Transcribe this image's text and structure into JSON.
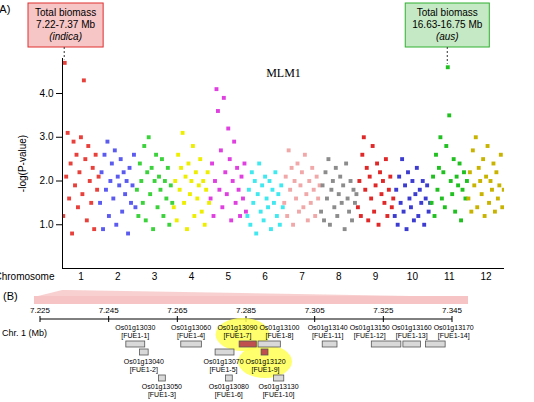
{
  "chart_data": {
    "type": "manhattan",
    "panel_label": "(A)",
    "title": "MLM1",
    "xlabel": "Chromosome",
    "ylabel": "-log(P-value)",
    "xlim": [
      0.5,
      12.5
    ],
    "xticks": [
      1,
      2,
      3,
      4,
      5,
      6,
      7,
      8,
      9,
      10,
      11,
      12
    ],
    "ylim": [
      0,
      4.8
    ],
    "yticks": [
      {
        "value": 1,
        "label": "1.0"
      },
      {
        "value": 2,
        "label": "2.0"
      },
      {
        "value": 3,
        "label": "3.0"
      },
      {
        "value": 4,
        "label": "4.0"
      }
    ],
    "marker": "square",
    "series": [
      {
        "color": "#e8413c",
        "x": [
          0.52,
          0.56,
          0.6,
          0.64,
          0.68,
          0.72,
          0.76,
          0.8,
          0.84,
          0.88,
          0.92,
          0.96,
          1,
          1.04,
          1.08,
          1.12,
          1.16,
          1.2,
          1.24,
          1.28,
          1.32,
          1.36,
          1.4,
          1.44,
          1.48
        ],
        "values": [
          1.2,
          4.7,
          2.1,
          3.1,
          1.6,
          2.4,
          0.8,
          2.9,
          1.9,
          2.6,
          1.4,
          2.2,
          3.0,
          1.7,
          4.3,
          2.5,
          1.1,
          2.8,
          2.0,
          1.5,
          2.3,
          0.9,
          2.6,
          1.8,
          2.1
        ]
      },
      {
        "color": "#5b5bf0",
        "x": [
          1.52,
          1.56,
          1.6,
          1.64,
          1.68,
          1.72,
          1.76,
          1.8,
          1.84,
          1.88,
          1.92,
          1.96,
          2,
          2.04,
          2.08,
          2.12,
          2.16,
          2.2,
          2.24,
          2.28,
          2.32,
          2.36,
          2.4,
          2.44,
          2.48
        ],
        "values": [
          1.5,
          2.2,
          0.9,
          2.6,
          1.8,
          2.9,
          1.2,
          2.0,
          2.4,
          1.6,
          2.7,
          1.0,
          2.1,
          1.9,
          2.5,
          1.3,
          2.2,
          1.7,
          2.0,
          0.8,
          2.3,
          1.5,
          1.9,
          2.6,
          1.4
        ]
      },
      {
        "color": "#3cd23c",
        "x": [
          2.52,
          2.56,
          2.6,
          2.64,
          2.68,
          2.72,
          2.76,
          2.8,
          2.84,
          2.88,
          2.92,
          2.96,
          3,
          3.04,
          3.08,
          3.12,
          3.16,
          3.2,
          3.24,
          3.28,
          3.32,
          3.36,
          3.4,
          3.44,
          3.48
        ],
        "values": [
          1.8,
          1.2,
          2.4,
          2.0,
          1.5,
          2.8,
          1.1,
          2.2,
          3.0,
          1.7,
          2.3,
          0.9,
          2.0,
          2.6,
          1.4,
          2.1,
          1.8,
          2.5,
          1.2,
          2.0,
          1.6,
          2.3,
          1.0,
          1.9,
          1.5
        ]
      },
      {
        "color": "#eeee00",
        "x": [
          3.52,
          3.56,
          3.6,
          3.64,
          3.68,
          3.72,
          3.76,
          3.8,
          3.84,
          3.88,
          3.92,
          3.96,
          4,
          4.04,
          4.08,
          4.12,
          4.16,
          4.2,
          4.24,
          4.28,
          4.32,
          4.36,
          4.4,
          4.44,
          4.48
        ],
        "values": [
          1.4,
          2.0,
          1.1,
          2.6,
          1.8,
          2.3,
          3.1,
          1.5,
          2.1,
          0.9,
          2.4,
          1.7,
          2.0,
          2.8,
          1.2,
          2.2,
          1.6,
          1.9,
          2.5,
          1.3,
          2.0,
          1.0,
          1.8,
          2.2,
          1.5
        ]
      },
      {
        "color": "#e040e0",
        "x": [
          4.52,
          4.56,
          4.6,
          4.64,
          4.68,
          4.72,
          4.76,
          4.8,
          4.84,
          4.88,
          4.92,
          4.96,
          5,
          5.04,
          5.08,
          5.12,
          5.16,
          5.2,
          5.24,
          5.28,
          5.32,
          5.36,
          5.4,
          5.44,
          5.48
        ],
        "values": [
          1.6,
          2.4,
          1.2,
          2.0,
          4.1,
          3.6,
          1.8,
          2.7,
          1.4,
          3.9,
          2.2,
          1.7,
          3.2,
          2.5,
          1.1,
          2.0,
          2.9,
          1.5,
          2.3,
          1.8,
          1.2,
          2.1,
          1.6,
          2.4,
          1.3
        ]
      },
      {
        "color": "#40e8f0",
        "x": [
          5.52,
          5.56,
          5.6,
          5.64,
          5.68,
          5.72,
          5.76,
          5.8,
          5.84,
          5.88,
          5.92,
          5.96,
          6,
          6.04,
          6.08,
          6.12,
          6.16,
          6.2,
          6.24,
          6.28,
          6.32,
          6.36,
          6.4,
          6.44,
          6.48
        ],
        "values": [
          1.2,
          1.8,
          1.0,
          2.2,
          1.5,
          2.0,
          0.8,
          1.7,
          2.4,
          1.3,
          1.9,
          1.1,
          2.1,
          1.6,
          1.4,
          2.0,
          0.9,
          1.8,
          1.5,
          2.2,
          1.2,
          1.7,
          1.0,
          1.9,
          1.4
        ]
      },
      {
        "color": "#f0a8a8",
        "x": [
          6.52,
          6.56,
          6.6,
          6.64,
          6.68,
          6.72,
          6.76,
          6.8,
          6.84,
          6.88,
          6.92,
          6.96,
          7,
          7.04,
          7.08,
          7.12,
          7.16,
          7.2,
          7.24,
          7.28,
          7.32,
          7.36,
          7.4,
          7.44,
          7.48
        ],
        "values": [
          1.5,
          2.1,
          1.2,
          2.7,
          1.8,
          2.3,
          1.0,
          2.0,
          1.6,
          2.4,
          1.3,
          1.9,
          2.2,
          1.4,
          2.6,
          1.7,
          1.1,
          2.0,
          1.5,
          2.3,
          1.8,
          1.2,
          2.1,
          1.6,
          1.9
        ]
      },
      {
        "color": "#8c8c8c",
        "x": [
          7.52,
          7.56,
          7.6,
          7.64,
          7.68,
          7.72,
          7.76,
          7.8,
          7.84,
          7.88,
          7.92,
          7.96,
          8,
          8.04,
          8.08,
          8.12,
          8.16,
          8.2,
          8.24,
          8.28,
          8.32,
          8.36,
          8.4,
          8.44,
          8.48
        ],
        "values": [
          1.3,
          1.9,
          1.1,
          2.2,
          1.6,
          2.5,
          1.0,
          1.8,
          2.0,
          1.4,
          2.3,
          1.2,
          1.7,
          2.1,
          1.5,
          1.9,
          0.9,
          2.4,
          1.6,
          1.3,
          2.0,
          1.1,
          1.8,
          1.5,
          1.7
        ]
      },
      {
        "color": "#e02828",
        "x": [
          8.52,
          8.56,
          8.6,
          8.64,
          8.68,
          8.72,
          8.76,
          8.8,
          8.84,
          8.88,
          8.92,
          8.96,
          9,
          9.04,
          9.08,
          9.12,
          9.16,
          9.2,
          9.24,
          9.28,
          9.32,
          9.36,
          9.4,
          9.44,
          9.48
        ],
        "values": [
          1.4,
          2.0,
          1.2,
          2.6,
          3.0,
          1.8,
          2.3,
          1.1,
          2.1,
          1.6,
          2.8,
          1.3,
          1.9,
          2.4,
          1.0,
          2.2,
          1.7,
          2.0,
          1.5,
          2.5,
          1.2,
          1.8,
          2.1,
          1.4,
          1.6
        ]
      },
      {
        "color": "#3c3cd0",
        "x": [
          9.52,
          9.56,
          9.6,
          9.64,
          9.68,
          9.72,
          9.76,
          9.8,
          9.84,
          9.88,
          9.92,
          9.96,
          10,
          10.04,
          10.08,
          10.12,
          10.16,
          10.2,
          10.24,
          10.28,
          10.32,
          10.36,
          10.4,
          10.44,
          10.48
        ],
        "values": [
          1.2,
          1.8,
          1.0,
          2.1,
          1.5,
          2.5,
          1.3,
          1.9,
          0.9,
          2.2,
          1.6,
          1.4,
          2.0,
          1.1,
          1.7,
          2.3,
          1.2,
          1.8,
          1.5,
          2.0,
          1.0,
          1.6,
          1.9,
          1.3,
          1.5
        ]
      },
      {
        "color": "#20c020",
        "x": [
          10.52,
          10.56,
          10.6,
          10.64,
          10.68,
          10.72,
          10.76,
          10.8,
          10.84,
          10.88,
          10.92,
          10.96,
          11,
          11.04,
          11.08,
          11.12,
          11.16,
          11.2,
          11.24,
          11.28,
          11.32,
          11.36,
          11.4,
          11.44,
          11.48
        ],
        "values": [
          1.5,
          2.1,
          1.2,
          2.6,
          1.8,
          2.3,
          3.0,
          1.6,
          2.2,
          1.4,
          2.8,
          4.6,
          3.5,
          2.0,
          1.7,
          2.5,
          1.3,
          2.1,
          1.9,
          2.4,
          1.1,
          1.8,
          2.2,
          1.6,
          2.0
        ]
      },
      {
        "color": "#c8b400",
        "x": [
          11.52,
          11.56,
          11.6,
          11.64,
          11.68,
          11.72,
          11.76,
          11.8,
          11.84,
          11.88,
          11.92,
          11.96,
          12,
          12.04,
          12.08,
          12.12,
          12.16,
          12.2,
          12.24,
          12.28,
          12.32,
          12.36,
          12.4,
          12.44,
          12.48
        ],
        "values": [
          1.6,
          2.2,
          1.3,
          2.7,
          1.9,
          3.0,
          1.4,
          2.3,
          2.0,
          1.7,
          2.5,
          1.2,
          2.1,
          2.8,
          1.5,
          2.0,
          1.8,
          2.4,
          1.3,
          2.2,
          1.6,
          1.9,
          2.6,
          1.4,
          1.8
        ]
      }
    ],
    "annotations": [
      {
        "text": [
          "Total biomass",
          "7.22-7.37 Mb",
          "(indica)"
        ],
        "x": 0.56,
        "y": 4.7,
        "color": "#e03030"
      },
      {
        "text": [
          "Total biomass",
          "16.63-16.75 Mb",
          "(aus)"
        ],
        "x": 10.96,
        "y": 4.6,
        "color": "#30b030"
      }
    ],
    "gene_map": {
      "panel_label": "(B)",
      "xlabel": "Chr. 1 (Mb)",
      "xlim": [
        7.225,
        7.345
      ],
      "xticks": [
        7.225,
        7.245,
        7.265,
        7.285,
        7.305,
        7.325,
        7.345
      ],
      "genes": [
        {
          "id": "Os01g13030",
          "label": "[FUE1-1]",
          "start": 7.25,
          "end": 7.2555,
          "row": 1,
          "color": "#d9d9d9",
          "highlight": false
        },
        {
          "id": "Os01g13040",
          "label": "[FUE1-2]",
          "start": 7.254,
          "end": 7.2565,
          "row": 2,
          "color": "#d9d9d9",
          "highlight": false
        },
        {
          "id": "Os01g13050",
          "label": "[FUE1-3]",
          "start": 7.2595,
          "end": 7.2615,
          "row": 3,
          "color": "#d9d9d9",
          "highlight": false
        },
        {
          "id": "Os01g13060",
          "label": "[FUE1-4]",
          "start": 7.266,
          "end": 7.272,
          "row": 1,
          "color": "#d9d9d9",
          "highlight": false
        },
        {
          "id": "Os01g13070",
          "label": "[FUE1-5]",
          "start": 7.276,
          "end": 7.2815,
          "row": 2,
          "color": "#d9d9d9",
          "highlight": false
        },
        {
          "id": "Os01g13080",
          "label": "[FUE1-6]",
          "start": 7.279,
          "end": 7.281,
          "row": 3,
          "color": "#d9d9d9",
          "highlight": false
        },
        {
          "id": "Os01g13090",
          "label": "[FUE1-7]",
          "start": 7.283,
          "end": 7.288,
          "row": 1,
          "color": "#c0504d",
          "highlight": true
        },
        {
          "id": "Os01g13100",
          "label": "[FUE1-8]",
          "start": 7.2885,
          "end": 7.295,
          "row": 1,
          "color": "#d9d9d9",
          "highlight": false
        },
        {
          "id": "Os01g13120",
          "label": "[FUE1-9]",
          "start": 7.2894,
          "end": 7.2914,
          "row": 2,
          "color": "#c0504d",
          "highlight": true
        },
        {
          "id": "Os01g13130",
          "label": "[FUE1-10]",
          "start": 7.293,
          "end": 7.296,
          "row": 3,
          "color": "#d9d9d9",
          "highlight": false
        },
        {
          "id": "Os01g13140",
          "label": "[FUE1-11]",
          "start": 7.3072,
          "end": 7.3115,
          "row": 1,
          "color": "#d9d9d9",
          "highlight": false
        },
        {
          "id": "Os01g13150",
          "label": "[FUE1-12]",
          "start": 7.3215,
          "end": 7.3301,
          "row": 1,
          "color": "#d9d9d9",
          "highlight": false
        },
        {
          "id": "Os01g13160",
          "label": "[FUE1-13]",
          "start": 7.3307,
          "end": 7.3358,
          "row": 1,
          "color": "#d9d9d9",
          "highlight": false
        },
        {
          "id": "Os01g13170",
          "label": "[FUE1-14]",
          "start": 7.3373,
          "end": 7.343,
          "row": 1,
          "color": "#d9d9d9",
          "highlight": false
        }
      ]
    }
  }
}
